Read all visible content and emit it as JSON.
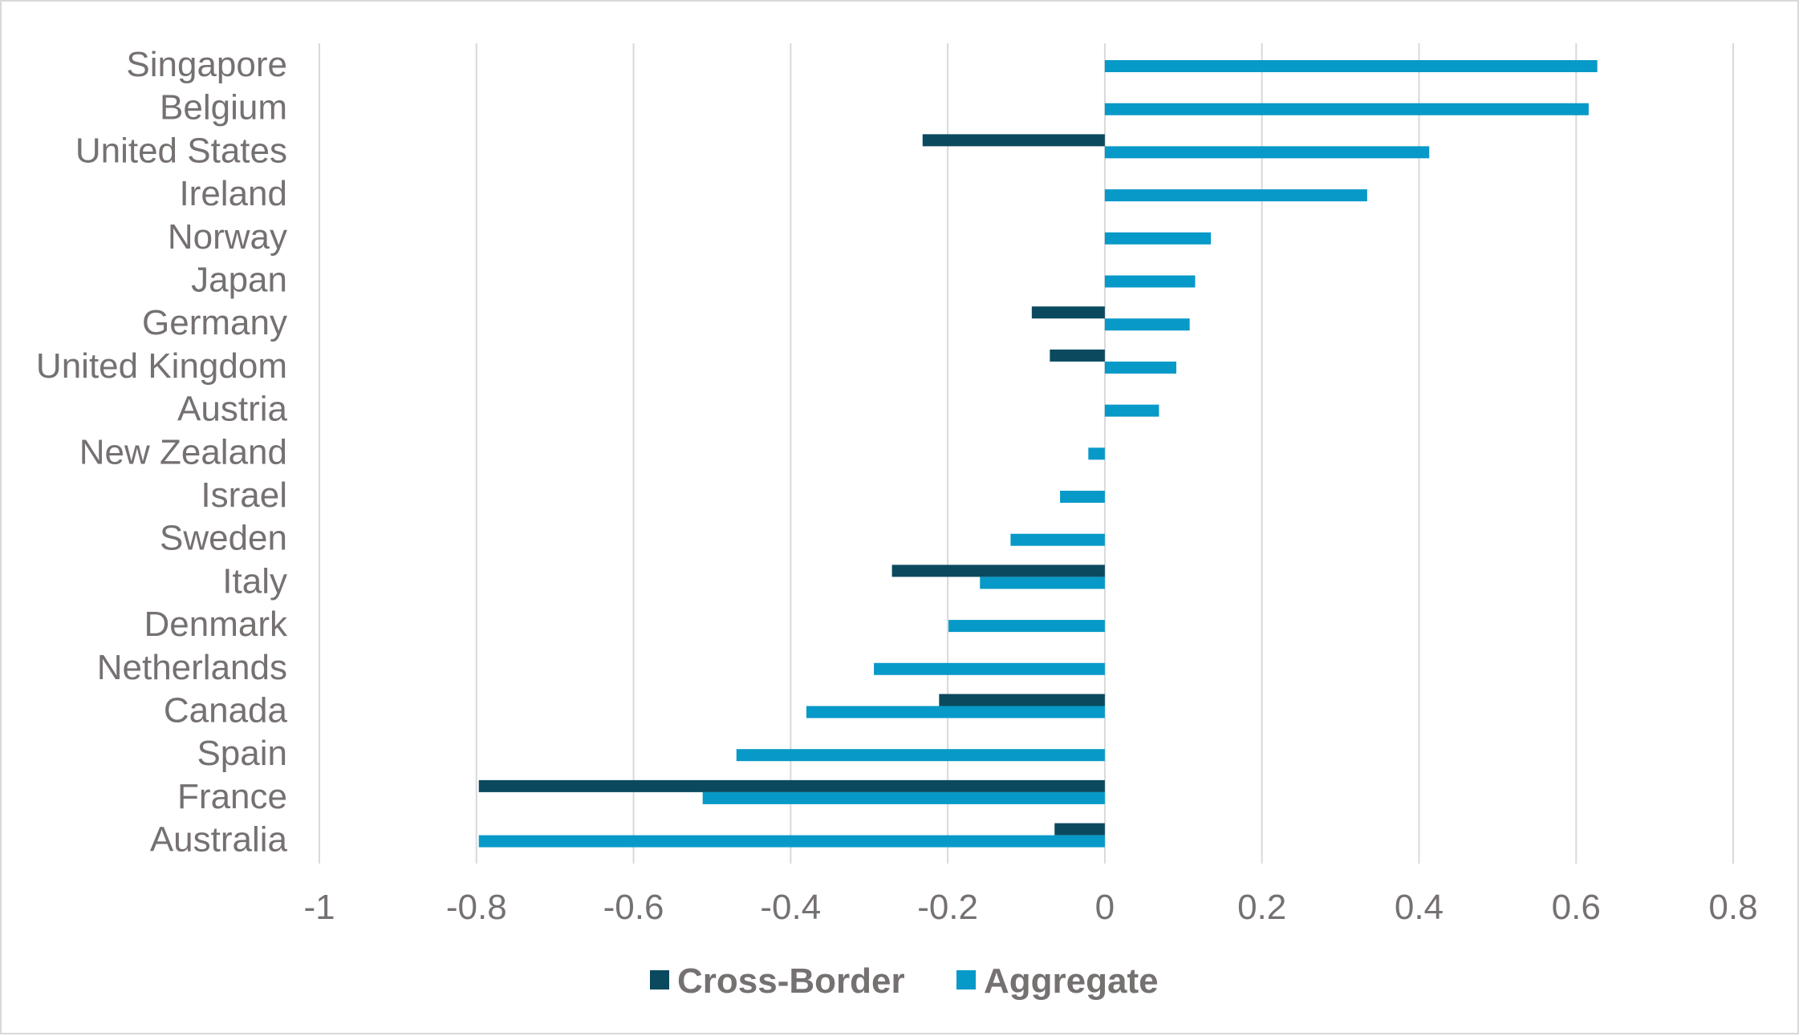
{
  "chart_data": {
    "type": "bar",
    "orientation": "horizontal",
    "categories": [
      "Singapore",
      "Belgium",
      "United States",
      "Ireland",
      "Norway",
      "Japan",
      "Germany",
      "United Kingdom",
      "Austria",
      "New Zealand",
      "Israel",
      "Sweden",
      "Italy",
      "Denmark",
      "Netherlands",
      "Canada",
      "Spain",
      "France",
      "Australia"
    ],
    "series": [
      {
        "name": "Cross-Border",
        "color": "#0b4a5e",
        "values": [
          null,
          null,
          -0.232,
          null,
          null,
          null,
          -0.093,
          -0.07,
          null,
          null,
          null,
          null,
          -0.271,
          null,
          null,
          -0.211,
          null,
          -0.797,
          -0.064
        ]
      },
      {
        "name": "Aggregate",
        "color": "#0799c8",
        "values": [
          0.627,
          0.616,
          0.413,
          0.334,
          0.135,
          0.115,
          0.108,
          0.091,
          0.069,
          -0.021,
          -0.057,
          -0.12,
          -0.159,
          -0.199,
          -0.294,
          -0.38,
          -0.469,
          -0.512,
          -0.797
        ]
      }
    ],
    "xlim": [
      -1,
      0.8
    ],
    "xticks": [
      "-1",
      "-0.8",
      "-0.6",
      "-0.4",
      "-0.2",
      "0",
      "0.2",
      "0.4",
      "0.6",
      "0.8"
    ],
    "xtick_values": [
      -1,
      -0.8,
      -0.6,
      -0.4,
      -0.2,
      0,
      0.2,
      0.4,
      0.6,
      0.8
    ],
    "grid": "vertical",
    "legend": "bottom-center",
    "title": "",
    "xlabel": "",
    "ylabel": ""
  }
}
